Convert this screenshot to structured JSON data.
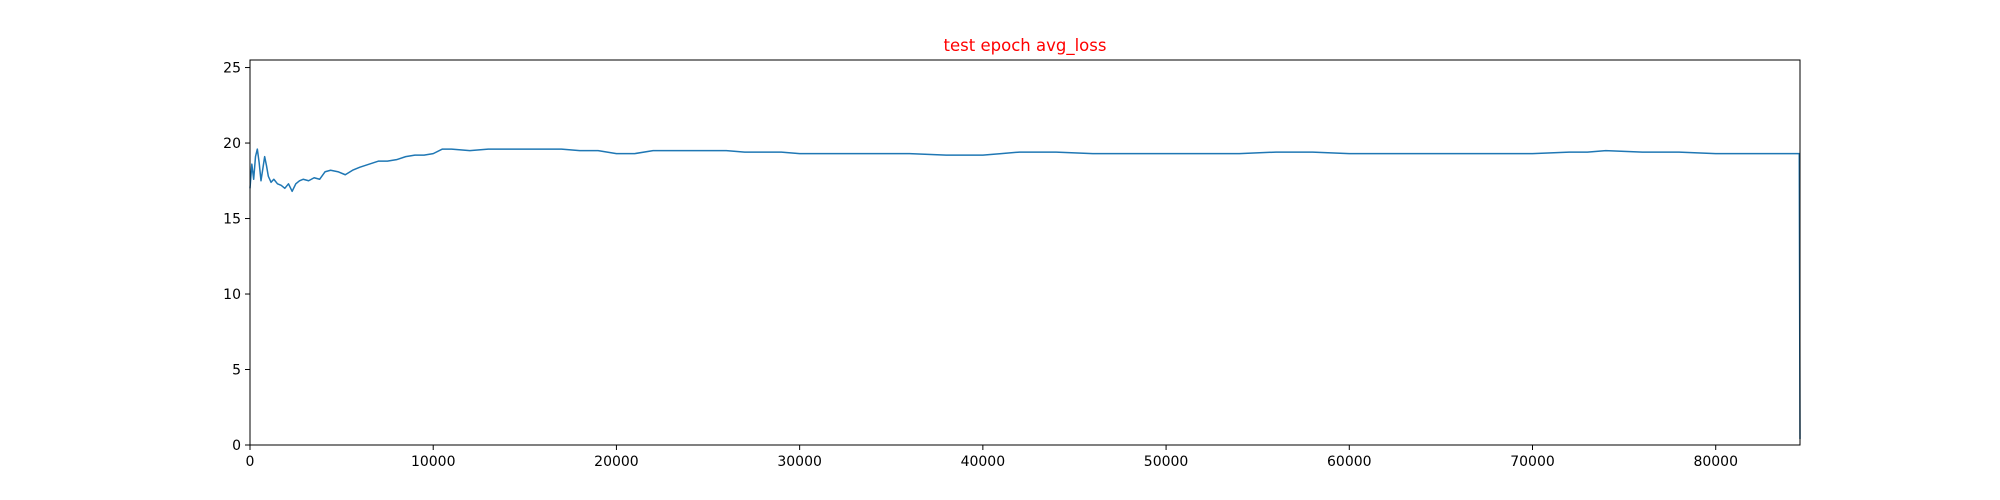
{
  "chart_data": {
    "type": "line",
    "title": "test epoch avg_loss",
    "title_color": "#ff0000",
    "xlabel": "",
    "ylabel": "",
    "xlim": [
      0,
      84600
    ],
    "ylim": [
      0,
      25.5
    ],
    "xticks": [
      0,
      10000,
      20000,
      30000,
      40000,
      50000,
      60000,
      70000,
      80000
    ],
    "yticks": [
      0,
      5,
      10,
      15,
      20,
      25
    ],
    "grid": false,
    "legend": "none",
    "line_color": "#1f77b4",
    "series": [
      {
        "x": [
          0,
          100,
          200,
          300,
          400,
          500,
          600,
          700,
          800,
          900,
          1000,
          1150,
          1300,
          1500,
          1700,
          1900,
          2100,
          2300,
          2500,
          2700,
          2900,
          3200,
          3500,
          3800,
          4100,
          4400,
          4800,
          5200,
          5600,
          6000,
          6500,
          7000,
          7500,
          8000,
          8500,
          9000,
          9500,
          10000,
          10500,
          11000,
          12000,
          13000,
          14000,
          15000,
          16000,
          17000,
          18000,
          19000,
          20000,
          21000,
          22000,
          23000,
          24000,
          25000,
          26000,
          27000,
          28000,
          29000,
          30000,
          32000,
          34000,
          36000,
          38000,
          40000,
          41000,
          42000,
          44000,
          46000,
          48000,
          50000,
          52000,
          54000,
          56000,
          58000,
          60000,
          62000,
          64000,
          66000,
          68000,
          70000,
          72000,
          73000,
          74000,
          76000,
          78000,
          80000,
          82000,
          84000,
          84500,
          84560,
          84600
        ],
        "y": [
          17.0,
          18.6,
          17.6,
          19.1,
          19.6,
          18.7,
          17.5,
          18.3,
          19.1,
          18.5,
          17.8,
          17.4,
          17.6,
          17.3,
          17.2,
          17.0,
          17.3,
          16.8,
          17.3,
          17.5,
          17.6,
          17.5,
          17.7,
          17.6,
          18.1,
          18.2,
          18.1,
          17.9,
          18.2,
          18.4,
          18.6,
          18.8,
          18.8,
          18.9,
          19.1,
          19.2,
          19.2,
          19.3,
          19.6,
          19.6,
          19.5,
          19.6,
          19.6,
          19.6,
          19.6,
          19.6,
          19.5,
          19.5,
          19.3,
          19.3,
          19.5,
          19.5,
          19.5,
          19.5,
          19.5,
          19.4,
          19.4,
          19.4,
          19.3,
          19.3,
          19.3,
          19.3,
          19.2,
          19.2,
          19.3,
          19.4,
          19.4,
          19.3,
          19.3,
          19.3,
          19.3,
          19.3,
          19.4,
          19.4,
          19.3,
          19.3,
          19.3,
          19.3,
          19.3,
          19.3,
          19.4,
          19.4,
          19.5,
          19.4,
          19.4,
          19.3,
          19.3,
          19.3,
          19.3,
          19.3,
          0.4
        ]
      }
    ]
  }
}
